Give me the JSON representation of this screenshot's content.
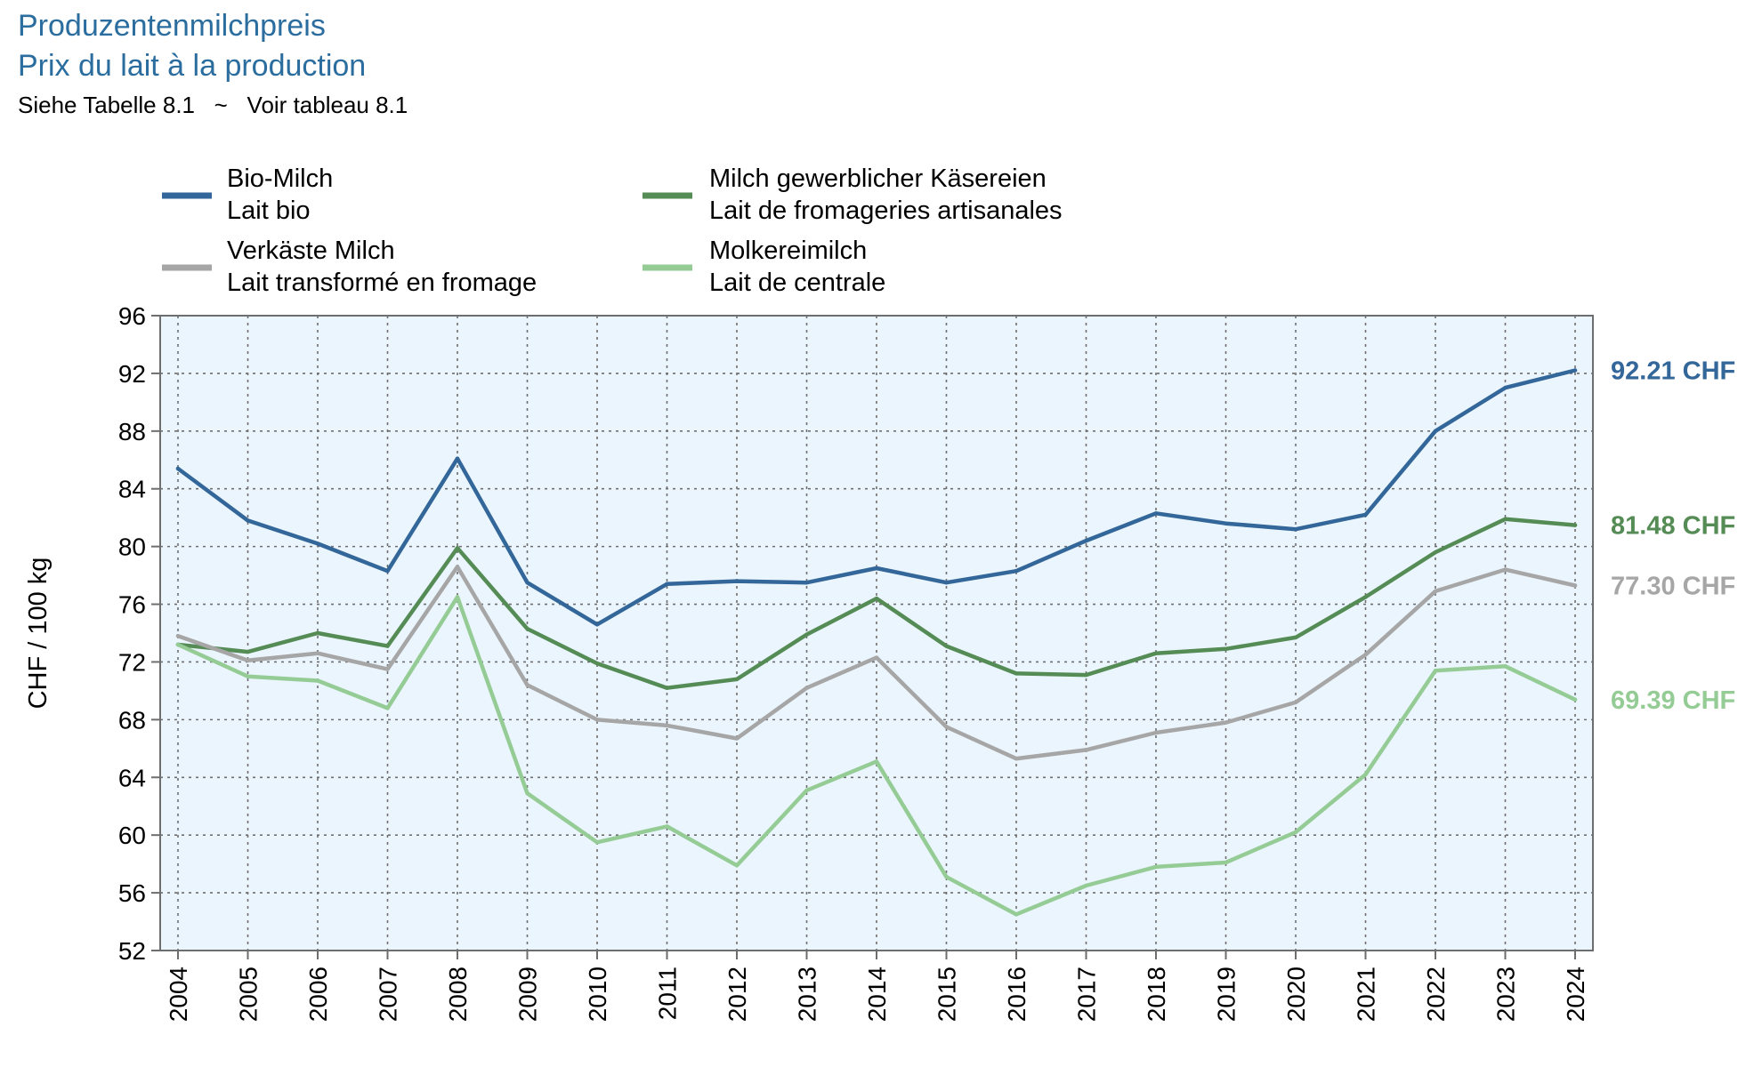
{
  "title_de": "Produzentenmilchpreis",
  "title_fr": "Prix du lait à la production",
  "subtitle": "Siehe Tabelle 8.1   ~   Voir tableau 8.1",
  "chart_data": {
    "type": "line",
    "ylabel": "CHF / 100 kg",
    "ylim": [
      52,
      96
    ],
    "yticks": [
      52,
      56,
      60,
      64,
      68,
      72,
      76,
      80,
      84,
      88,
      92,
      96
    ],
    "categories": [
      "2004",
      "2005",
      "2006",
      "2007",
      "2008",
      "2009",
      "2010",
      "2011",
      "2012",
      "2013",
      "2014",
      "2015",
      "2016",
      "2017",
      "2018",
      "2019",
      "2020",
      "2021",
      "2022",
      "2023",
      "2024"
    ],
    "grid": true,
    "legend_position": "top",
    "series": [
      {
        "id": "bio",
        "name_de": "Bio-Milch",
        "name_fr": "Lait bio",
        "color": "#336699",
        "values": [
          85.4,
          81.8,
          80.2,
          78.3,
          86.1,
          77.5,
          74.6,
          77.4,
          77.6,
          77.5,
          78.5,
          77.5,
          78.3,
          80.4,
          82.3,
          81.6,
          81.2,
          82.2,
          88.0,
          91.0,
          92.21
        ],
        "end_label": "92.21 CHF"
      },
      {
        "id": "kaesereien",
        "name_de": "Milch gewerblicher Käsereien",
        "name_fr": "Lait de fromageries artisanales",
        "color": "#558c55",
        "values": [
          73.2,
          72.7,
          74.0,
          73.1,
          79.9,
          74.3,
          71.9,
          70.2,
          70.8,
          73.9,
          76.4,
          73.1,
          71.2,
          71.1,
          72.6,
          72.9,
          73.7,
          76.5,
          79.6,
          81.9,
          81.48
        ],
        "end_label": "81.48 CHF"
      },
      {
        "id": "verkaeste",
        "name_de": "Verkäste Milch",
        "name_fr": "Lait transformé en fromage",
        "color": "#a6a6a6",
        "values": [
          73.8,
          72.1,
          72.6,
          71.5,
          78.6,
          70.4,
          68.0,
          67.6,
          66.7,
          70.2,
          72.3,
          67.5,
          65.3,
          65.9,
          67.1,
          67.8,
          69.2,
          72.5,
          76.9,
          78.4,
          77.3
        ],
        "end_label": "77.30 CHF"
      },
      {
        "id": "molkerei",
        "name_de": "Molkereimilch",
        "name_fr": "Lait de centrale",
        "color": "#95cc95",
        "values": [
          73.2,
          71.0,
          70.7,
          68.8,
          76.5,
          62.9,
          59.5,
          60.6,
          57.9,
          63.1,
          65.1,
          57.1,
          54.5,
          56.5,
          57.8,
          58.1,
          60.2,
          64.2,
          71.4,
          71.7,
          69.39
        ],
        "end_label": "69.39 CHF"
      }
    ]
  }
}
